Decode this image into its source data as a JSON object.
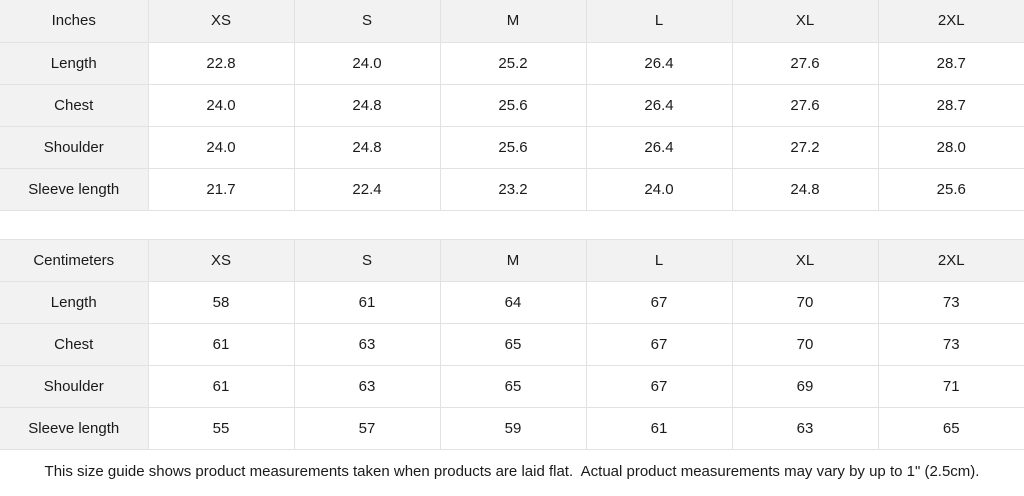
{
  "colors": {
    "header_bg": "#f2f2f2",
    "border": "#e2e2e2",
    "text": "#1a1a1a",
    "cell_bg": "#ffffff"
  },
  "chart_data": [
    {
      "type": "table",
      "title": "Inches",
      "columns": [
        "XS",
        "S",
        "M",
        "L",
        "XL",
        "2XL"
      ],
      "row_labels": [
        "Length",
        "Chest",
        "Shoulder",
        "Sleeve length"
      ],
      "rows": [
        [
          "22.8",
          "24.0",
          "25.2",
          "26.4",
          "27.6",
          "28.7"
        ],
        [
          "24.0",
          "24.8",
          "25.6",
          "26.4",
          "27.6",
          "28.7"
        ],
        [
          "24.0",
          "24.8",
          "25.6",
          "26.4",
          "27.2",
          "28.0"
        ],
        [
          "21.7",
          "22.4",
          "23.2",
          "24.0",
          "24.8",
          "25.6"
        ]
      ]
    },
    {
      "type": "table",
      "title": "Centimeters",
      "columns": [
        "XS",
        "S",
        "M",
        "L",
        "XL",
        "2XL"
      ],
      "row_labels": [
        "Length",
        "Chest",
        "Shoulder",
        "Sleeve length"
      ],
      "rows": [
        [
          "58",
          "61",
          "64",
          "67",
          "70",
          "73"
        ],
        [
          "61",
          "63",
          "65",
          "67",
          "70",
          "73"
        ],
        [
          "61",
          "63",
          "65",
          "67",
          "69",
          "71"
        ],
        [
          "55",
          "57",
          "59",
          "61",
          "63",
          "65"
        ]
      ]
    }
  ],
  "footnote": "This size guide shows product measurements taken when products are laid flat.  Actual product measurements may vary by up to 1\" (2.5cm)."
}
